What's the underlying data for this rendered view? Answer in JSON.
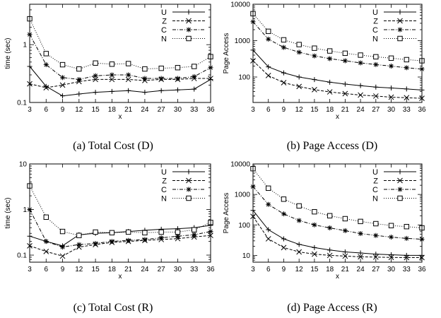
{
  "chart_data": [
    {
      "type": "line",
      "caption": "(a) Total Cost (D)",
      "xlabel": "x",
      "ylabel": "time (sec)",
      "yscale": "log",
      "ylim": [
        0.1,
        5
      ],
      "yticks": [
        0.1,
        1
      ],
      "ytick_labels": [
        "0.1",
        "1"
      ],
      "x": [
        3,
        6,
        9,
        12,
        15,
        18,
        21,
        24,
        27,
        30,
        33,
        36
      ],
      "xlim": [
        3,
        36
      ],
      "legend_position": "top-right",
      "series": [
        {
          "name": "U",
          "marker": "plus",
          "dash": "solid",
          "values": [
            0.42,
            0.19,
            0.13,
            0.14,
            0.15,
            0.155,
            0.16,
            0.15,
            0.16,
            0.165,
            0.17,
            0.25
          ]
        },
        {
          "name": "Z",
          "marker": "x",
          "dash": "dashed",
          "values": [
            0.21,
            0.18,
            0.2,
            0.23,
            0.25,
            0.25,
            0.25,
            0.24,
            0.25,
            0.25,
            0.26,
            0.26
          ]
        },
        {
          "name": "C",
          "marker": "star",
          "dash": "dashdot",
          "values": [
            1.5,
            0.45,
            0.27,
            0.25,
            0.29,
            0.3,
            0.3,
            0.26,
            0.26,
            0.26,
            0.28,
            0.4
          ]
        },
        {
          "name": "N",
          "marker": "square",
          "dash": "dotted",
          "values": [
            2.8,
            0.7,
            0.45,
            0.38,
            0.48,
            0.46,
            0.47,
            0.38,
            0.39,
            0.4,
            0.42,
            0.62
          ]
        }
      ]
    },
    {
      "type": "line",
      "caption": "(b) Page Access (D)",
      "xlabel": "x",
      "ylabel": "Page Access",
      "yscale": "log",
      "ylim": [
        20,
        10000
      ],
      "yticks": [
        100,
        1000,
        10000
      ],
      "ytick_labels": [
        "100",
        "1000",
        "10000"
      ],
      "x": [
        3,
        6,
        9,
        12,
        15,
        18,
        21,
        24,
        27,
        30,
        33,
        36
      ],
      "xlim": [
        3,
        36
      ],
      "legend_position": "top-right",
      "series": [
        {
          "name": "U",
          "marker": "plus",
          "dash": "solid",
          "values": [
            550,
            190,
            130,
            100,
            85,
            72,
            64,
            58,
            53,
            50,
            47,
            44
          ]
        },
        {
          "name": "Z",
          "marker": "x",
          "dash": "dashed",
          "values": [
            280,
            110,
            70,
            55,
            45,
            39,
            35,
            32,
            30,
            28,
            27,
            26
          ]
        },
        {
          "name": "C",
          "marker": "star",
          "dash": "dashdot",
          "values": [
            3300,
            1100,
            650,
            480,
            380,
            320,
            280,
            245,
            220,
            200,
            180,
            165
          ]
        },
        {
          "name": "N",
          "marker": "square",
          "dash": "dotted",
          "values": [
            5500,
            1800,
            1050,
            780,
            620,
            520,
            450,
            400,
            360,
            330,
            300,
            280
          ]
        }
      ]
    },
    {
      "type": "line",
      "caption": "(c) Total Cost (R)",
      "xlabel": "x",
      "ylabel": "time (sec)",
      "yscale": "log",
      "ylim": [
        0.07,
        10
      ],
      "yticks": [
        0.1,
        1,
        10
      ],
      "ytick_labels": [
        "0.1",
        "1",
        "10"
      ],
      "x": [
        3,
        6,
        9,
        12,
        15,
        18,
        21,
        24,
        27,
        30,
        33,
        36
      ],
      "xlim": [
        3,
        36
      ],
      "legend_position": "top-right",
      "series": [
        {
          "name": "U",
          "marker": "plus",
          "dash": "solid",
          "values": [
            0.26,
            0.2,
            0.16,
            0.28,
            0.3,
            0.31,
            0.33,
            0.35,
            0.37,
            0.38,
            0.4,
            0.45
          ]
        },
        {
          "name": "Z",
          "marker": "x",
          "dash": "dashed",
          "values": [
            0.16,
            0.12,
            0.095,
            0.15,
            0.17,
            0.19,
            0.2,
            0.21,
            0.22,
            0.23,
            0.25,
            0.27
          ]
        },
        {
          "name": "C",
          "marker": "star",
          "dash": "dashdot",
          "values": [
            1.0,
            0.2,
            0.15,
            0.17,
            0.18,
            0.2,
            0.21,
            0.22,
            0.24,
            0.26,
            0.28,
            0.33
          ]
        },
        {
          "name": "N",
          "marker": "square",
          "dash": "dotted",
          "values": [
            3.3,
            0.68,
            0.33,
            0.27,
            0.32,
            0.31,
            0.32,
            0.31,
            0.32,
            0.32,
            0.36,
            0.52
          ]
        }
      ]
    },
    {
      "type": "line",
      "caption": "(d) Page Access (R)",
      "xlabel": "x",
      "ylabel": "Page Access",
      "yscale": "log",
      "ylim": [
        6,
        10000
      ],
      "yticks": [
        10,
        100,
        1000,
        10000
      ],
      "ytick_labels": [
        "10",
        "100",
        "1000",
        "10000"
      ],
      "x": [
        3,
        6,
        9,
        12,
        15,
        18,
        21,
        24,
        27,
        30,
        33,
        36
      ],
      "xlim": [
        3,
        36
      ],
      "legend_position": "top-right",
      "series": [
        {
          "name": "U",
          "marker": "plus",
          "dash": "solid",
          "values": [
            300,
            70,
            35,
            23,
            18,
            15,
            13,
            12,
            11,
            10.5,
            10,
            10
          ]
        },
        {
          "name": "Z",
          "marker": "x",
          "dash": "dashed",
          "values": [
            190,
            35,
            18,
            13,
            11,
            10,
            9.5,
            9,
            8.8,
            8.6,
            8.5,
            8.5
          ]
        },
        {
          "name": "C",
          "marker": "star",
          "dash": "dashdot",
          "values": [
            1800,
            470,
            230,
            140,
            100,
            80,
            65,
            52,
            45,
            40,
            36,
            34
          ]
        },
        {
          "name": "N",
          "marker": "square",
          "dash": "dotted",
          "values": [
            7000,
            1600,
            700,
            420,
            270,
            200,
            160,
            130,
            110,
            95,
            88,
            80
          ]
        }
      ]
    }
  ]
}
